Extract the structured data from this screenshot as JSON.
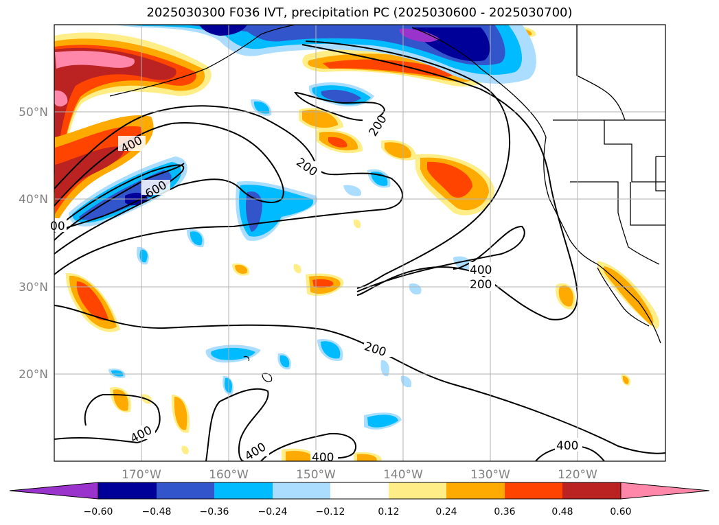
{
  "title": "2025030300 F036 IVT, precipitation PC (2025030600 - 2025030700)",
  "map": {
    "lat_labels": [
      "50°N",
      "40°N",
      "30°N",
      "20°N"
    ],
    "lon_labels": [
      "170°W",
      "160°W",
      "150°W",
      "140°W",
      "130°W",
      "120°W"
    ],
    "contour_labels": [
      "400",
      "600",
      "200",
      "200",
      "200",
      "400",
      "200",
      "400",
      "400",
      "400",
      "400",
      "00"
    ],
    "contour_color": "#000000",
    "grid_color": "#b0b0b0"
  },
  "colorbar": {
    "colors": [
      "#9933cc",
      "#000099",
      "#3355cc",
      "#00bbff",
      "#aaddff",
      "#ffffff",
      "#ffee88",
      "#ffaa00",
      "#ff4400",
      "#bb2222",
      "#ff88aa"
    ],
    "tick_labels": [
      "−0.60",
      "−0.48",
      "−0.36",
      "−0.24",
      "−0.12",
      "0.12",
      "0.24",
      "0.36",
      "0.48",
      "0.60"
    ]
  }
}
